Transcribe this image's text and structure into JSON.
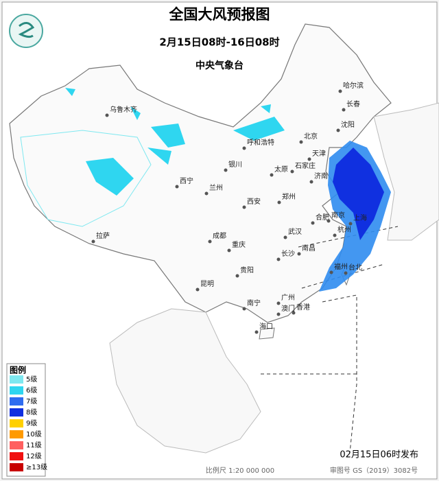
{
  "header": {
    "title": "全国大风预报图",
    "date_range": "2月15日08时-16日08时",
    "issuer": "中央气象台"
  },
  "legend": {
    "title": "图例",
    "items": [
      {
        "label": "5级",
        "color": "#7ee8f0"
      },
      {
        "label": "6级",
        "color": "#2fd6f0"
      },
      {
        "label": "7级",
        "color": "#2f6cf0"
      },
      {
        "label": "8级",
        "color": "#1030e0"
      },
      {
        "label": "9级",
        "color": "#ffd000"
      },
      {
        "label": "10级",
        "color": "#ff9a00"
      },
      {
        "label": "11级",
        "color": "#ff6060"
      },
      {
        "label": "12级",
        "color": "#f01010"
      },
      {
        "label": "≥13级",
        "color": "#c80000"
      }
    ]
  },
  "cities": [
    "哈尔滨",
    "长春",
    "乌鲁木齐",
    "沈阳",
    "北京",
    "呼和浩特",
    "天津",
    "银川",
    "石家庄",
    "太原",
    "济南",
    "西宁",
    "兰州",
    "郑州",
    "西安",
    "拉萨",
    "成都",
    "合肥",
    "南京",
    "上海",
    "武汉",
    "杭州",
    "重庆",
    "长沙",
    "南昌",
    "贵阳",
    "福州",
    "台北",
    "昆明",
    "广州",
    "南宁",
    "香港",
    "澳门",
    "海口"
  ],
  "footer": {
    "issue_time": "02月15日06时发布",
    "scale": "比例尺 1:20 000 000",
    "map_number": "审图号 GS（2019）3082号"
  }
}
